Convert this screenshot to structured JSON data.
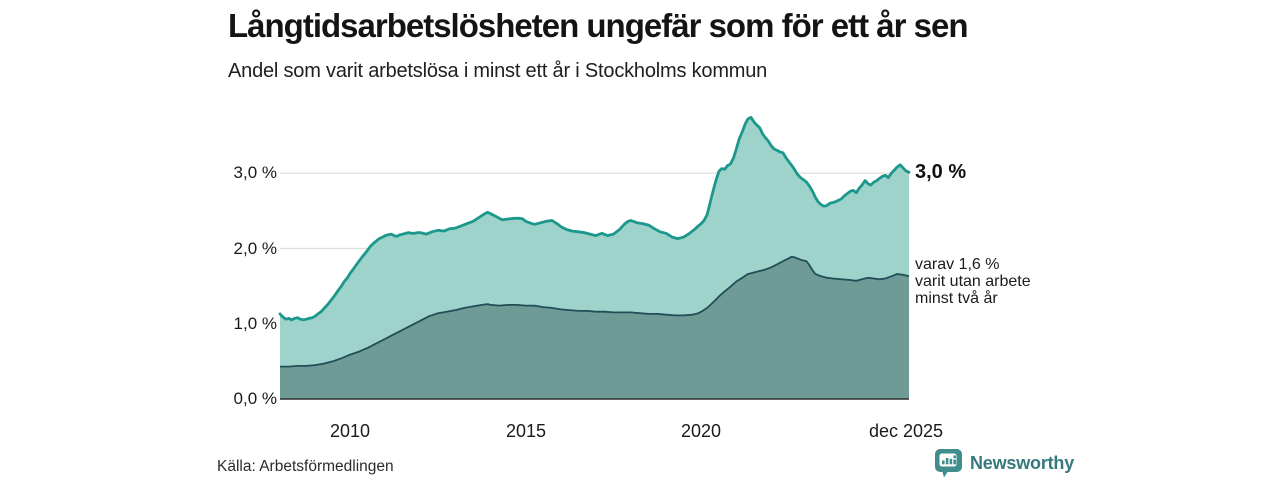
{
  "logo": {
    "text": "Newsworthy",
    "icon": "bar-chart-speech-bubble",
    "badge_color": "#3f8e8d",
    "text_color": "#36797d"
  },
  "chart_data": {
    "type": "area",
    "title": "Långtidsarbetslösheten ungefär som för ett år sen",
    "subtitle": "Andel som varit arbetslösa i minst ett år i Stockholms kommun",
    "source": "Källa: Arbetsförmedlingen",
    "xlabel": "",
    "ylabel": "",
    "xlim": [
      2008,
      2025.92
    ],
    "ylim": [
      0,
      4.0
    ],
    "grid": true,
    "legend": "direct-labels-right",
    "ytick_labels": [
      "3,0 %",
      "2,0 %",
      "1,0 %",
      "0,0 %"
    ],
    "ytick_values": [
      3,
      2,
      1,
      0
    ],
    "xtick_labels": [
      "2010",
      "2015",
      "2020",
      "dec 2025"
    ],
    "xtick_values": [
      2010,
      2015,
      2020,
      2025.92
    ],
    "annotations": {
      "end_total_label": "3,0 %",
      "sub_label_lines": [
        "varav 1,6 %",
        "varit utan arbete",
        "minst två år"
      ]
    },
    "colors": {
      "line_total": "#1b988b",
      "fill_total": "#9ed3cc",
      "line_two_year": "#214e57",
      "fill_two_year": "#6f9b96",
      "grid": "#d8d8d8",
      "axis": "#2e2e2e"
    },
    "series": [
      {
        "name": "arbetslösa minst ett år",
        "end_value_pct": 3.0,
        "points": [
          [
            2008.0,
            1.13
          ],
          [
            2008.08,
            1.09
          ],
          [
            2008.17,
            1.06
          ],
          [
            2008.25,
            1.07
          ],
          [
            2008.33,
            1.05
          ],
          [
            2008.42,
            1.07
          ],
          [
            2008.5,
            1.08
          ],
          [
            2008.58,
            1.06
          ],
          [
            2008.67,
            1.05
          ],
          [
            2008.75,
            1.06
          ],
          [
            2008.83,
            1.07
          ],
          [
            2008.92,
            1.08
          ],
          [
            2009.0,
            1.1
          ],
          [
            2009.08,
            1.13
          ],
          [
            2009.17,
            1.16
          ],
          [
            2009.25,
            1.2
          ],
          [
            2009.33,
            1.24
          ],
          [
            2009.42,
            1.29
          ],
          [
            2009.5,
            1.34
          ],
          [
            2009.58,
            1.39
          ],
          [
            2009.67,
            1.45
          ],
          [
            2009.75,
            1.5
          ],
          [
            2009.83,
            1.56
          ],
          [
            2009.92,
            1.61
          ],
          [
            2010.0,
            1.67
          ],
          [
            2010.08,
            1.72
          ],
          [
            2010.17,
            1.78
          ],
          [
            2010.25,
            1.83
          ],
          [
            2010.33,
            1.88
          ],
          [
            2010.42,
            1.93
          ],
          [
            2010.5,
            1.98
          ],
          [
            2010.58,
            2.03
          ],
          [
            2010.67,
            2.07
          ],
          [
            2010.75,
            2.1
          ],
          [
            2010.83,
            2.13
          ],
          [
            2010.92,
            2.15
          ],
          [
            2011.0,
            2.17
          ],
          [
            2011.08,
            2.18
          ],
          [
            2011.17,
            2.19
          ],
          [
            2011.25,
            2.17
          ],
          [
            2011.33,
            2.16
          ],
          [
            2011.42,
            2.18
          ],
          [
            2011.5,
            2.19
          ],
          [
            2011.58,
            2.2
          ],
          [
            2011.67,
            2.21
          ],
          [
            2011.75,
            2.2
          ],
          [
            2011.83,
            2.2
          ],
          [
            2011.92,
            2.21
          ],
          [
            2012.0,
            2.21
          ],
          [
            2012.17,
            2.19
          ],
          [
            2012.33,
            2.22
          ],
          [
            2012.5,
            2.24
          ],
          [
            2012.67,
            2.23
          ],
          [
            2012.83,
            2.26
          ],
          [
            2013.0,
            2.27
          ],
          [
            2013.17,
            2.3
          ],
          [
            2013.33,
            2.33
          ],
          [
            2013.5,
            2.36
          ],
          [
            2013.67,
            2.41
          ],
          [
            2013.83,
            2.46
          ],
          [
            2013.92,
            2.48
          ],
          [
            2014.0,
            2.46
          ],
          [
            2014.17,
            2.42
          ],
          [
            2014.33,
            2.38
          ],
          [
            2014.5,
            2.39
          ],
          [
            2014.67,
            2.4
          ],
          [
            2014.83,
            2.4
          ],
          [
            2014.92,
            2.39
          ],
          [
            2015.0,
            2.36
          ],
          [
            2015.17,
            2.33
          ],
          [
            2015.25,
            2.32
          ],
          [
            2015.42,
            2.34
          ],
          [
            2015.58,
            2.36
          ],
          [
            2015.75,
            2.37
          ],
          [
            2015.92,
            2.32
          ],
          [
            2016.0,
            2.29
          ],
          [
            2016.17,
            2.25
          ],
          [
            2016.33,
            2.23
          ],
          [
            2016.5,
            2.22
          ],
          [
            2016.67,
            2.21
          ],
          [
            2016.83,
            2.19
          ],
          [
            2017.0,
            2.17
          ],
          [
            2017.17,
            2.2
          ],
          [
            2017.33,
            2.17
          ],
          [
            2017.5,
            2.19
          ],
          [
            2017.67,
            2.25
          ],
          [
            2017.83,
            2.33
          ],
          [
            2017.92,
            2.36
          ],
          [
            2018.0,
            2.37
          ],
          [
            2018.17,
            2.34
          ],
          [
            2018.33,
            2.33
          ],
          [
            2018.5,
            2.31
          ],
          [
            2018.67,
            2.26
          ],
          [
            2018.83,
            2.22
          ],
          [
            2019.0,
            2.2
          ],
          [
            2019.17,
            2.15
          ],
          [
            2019.33,
            2.13
          ],
          [
            2019.5,
            2.15
          ],
          [
            2019.67,
            2.2
          ],
          [
            2019.83,
            2.26
          ],
          [
            2019.92,
            2.3
          ],
          [
            2020.0,
            2.33
          ],
          [
            2020.08,
            2.37
          ],
          [
            2020.17,
            2.45
          ],
          [
            2020.25,
            2.6
          ],
          [
            2020.33,
            2.75
          ],
          [
            2020.42,
            2.9
          ],
          [
            2020.5,
            3.02
          ],
          [
            2020.58,
            3.06
          ],
          [
            2020.67,
            3.05
          ],
          [
            2020.75,
            3.1
          ],
          [
            2020.83,
            3.12
          ],
          [
            2020.92,
            3.2
          ],
          [
            2021.0,
            3.32
          ],
          [
            2021.08,
            3.45
          ],
          [
            2021.17,
            3.55
          ],
          [
            2021.25,
            3.65
          ],
          [
            2021.33,
            3.72
          ],
          [
            2021.42,
            3.74
          ],
          [
            2021.5,
            3.68
          ],
          [
            2021.58,
            3.64
          ],
          [
            2021.67,
            3.6
          ],
          [
            2021.75,
            3.52
          ],
          [
            2021.83,
            3.47
          ],
          [
            2021.92,
            3.42
          ],
          [
            2022.0,
            3.36
          ],
          [
            2022.08,
            3.32
          ],
          [
            2022.17,
            3.3
          ],
          [
            2022.25,
            3.28
          ],
          [
            2022.33,
            3.27
          ],
          [
            2022.42,
            3.2
          ],
          [
            2022.5,
            3.15
          ],
          [
            2022.58,
            3.1
          ],
          [
            2022.67,
            3.04
          ],
          [
            2022.75,
            2.98
          ],
          [
            2022.83,
            2.94
          ],
          [
            2022.92,
            2.91
          ],
          [
            2023.0,
            2.88
          ],
          [
            2023.08,
            2.83
          ],
          [
            2023.17,
            2.76
          ],
          [
            2023.25,
            2.68
          ],
          [
            2023.33,
            2.62
          ],
          [
            2023.42,
            2.58
          ],
          [
            2023.5,
            2.56
          ],
          [
            2023.58,
            2.57
          ],
          [
            2023.67,
            2.6
          ],
          [
            2023.75,
            2.61
          ],
          [
            2023.83,
            2.62
          ],
          [
            2023.92,
            2.64
          ],
          [
            2024.0,
            2.66
          ],
          [
            2024.08,
            2.7
          ],
          [
            2024.17,
            2.73
          ],
          [
            2024.25,
            2.76
          ],
          [
            2024.33,
            2.77
          ],
          [
            2024.42,
            2.74
          ],
          [
            2024.5,
            2.8
          ],
          [
            2024.58,
            2.84
          ],
          [
            2024.67,
            2.9
          ],
          [
            2024.75,
            2.86
          ],
          [
            2024.83,
            2.84
          ],
          [
            2024.92,
            2.88
          ],
          [
            2025.0,
            2.9
          ],
          [
            2025.08,
            2.93
          ],
          [
            2025.17,
            2.96
          ],
          [
            2025.25,
            2.97
          ],
          [
            2025.33,
            2.94
          ],
          [
            2025.42,
            3.0
          ],
          [
            2025.5,
            3.04
          ],
          [
            2025.58,
            3.08
          ],
          [
            2025.67,
            3.11
          ],
          [
            2025.75,
            3.07
          ],
          [
            2025.83,
            3.03
          ],
          [
            2025.92,
            3.01
          ]
        ]
      },
      {
        "name": "varav utan arbete minst två år",
        "end_value_pct": 1.6,
        "points": [
          [
            2008.0,
            0.43
          ],
          [
            2008.25,
            0.43
          ],
          [
            2008.5,
            0.44
          ],
          [
            2008.75,
            0.44
          ],
          [
            2009.0,
            0.45
          ],
          [
            2009.25,
            0.47
          ],
          [
            2009.5,
            0.5
          ],
          [
            2009.75,
            0.54
          ],
          [
            2010.0,
            0.59
          ],
          [
            2010.25,
            0.63
          ],
          [
            2010.5,
            0.68
          ],
          [
            2010.75,
            0.74
          ],
          [
            2011.0,
            0.8
          ],
          [
            2011.25,
            0.86
          ],
          [
            2011.5,
            0.92
          ],
          [
            2011.75,
            0.98
          ],
          [
            2012.0,
            1.04
          ],
          [
            2012.25,
            1.1
          ],
          [
            2012.5,
            1.14
          ],
          [
            2012.75,
            1.16
          ],
          [
            2013.0,
            1.18
          ],
          [
            2013.25,
            1.21
          ],
          [
            2013.5,
            1.23
          ],
          [
            2013.75,
            1.25
          ],
          [
            2013.92,
            1.26
          ],
          [
            2014.0,
            1.25
          ],
          [
            2014.25,
            1.24
          ],
          [
            2014.5,
            1.25
          ],
          [
            2014.75,
            1.25
          ],
          [
            2015.0,
            1.24
          ],
          [
            2015.25,
            1.24
          ],
          [
            2015.5,
            1.22
          ],
          [
            2015.75,
            1.21
          ],
          [
            2016.0,
            1.19
          ],
          [
            2016.25,
            1.18
          ],
          [
            2016.5,
            1.17
          ],
          [
            2016.75,
            1.17
          ],
          [
            2017.0,
            1.16
          ],
          [
            2017.25,
            1.16
          ],
          [
            2017.5,
            1.15
          ],
          [
            2017.75,
            1.15
          ],
          [
            2018.0,
            1.15
          ],
          [
            2018.25,
            1.14
          ],
          [
            2018.5,
            1.13
          ],
          [
            2018.75,
            1.13
          ],
          [
            2019.0,
            1.12
          ],
          [
            2019.25,
            1.11
          ],
          [
            2019.5,
            1.11
          ],
          [
            2019.75,
            1.12
          ],
          [
            2019.92,
            1.14
          ],
          [
            2020.0,
            1.16
          ],
          [
            2020.17,
            1.21
          ],
          [
            2020.33,
            1.28
          ],
          [
            2020.5,
            1.36
          ],
          [
            2020.67,
            1.43
          ],
          [
            2020.83,
            1.49
          ],
          [
            2021.0,
            1.56
          ],
          [
            2021.17,
            1.61
          ],
          [
            2021.33,
            1.66
          ],
          [
            2021.5,
            1.68
          ],
          [
            2021.67,
            1.7
          ],
          [
            2021.83,
            1.72
          ],
          [
            2022.0,
            1.75
          ],
          [
            2022.17,
            1.79
          ],
          [
            2022.33,
            1.83
          ],
          [
            2022.5,
            1.87
          ],
          [
            2022.58,
            1.89
          ],
          [
            2022.67,
            1.88
          ],
          [
            2022.83,
            1.85
          ],
          [
            2023.0,
            1.83
          ],
          [
            2023.08,
            1.78
          ],
          [
            2023.17,
            1.71
          ],
          [
            2023.25,
            1.66
          ],
          [
            2023.42,
            1.63
          ],
          [
            2023.58,
            1.61
          ],
          [
            2023.75,
            1.6
          ],
          [
            2024.0,
            1.59
          ],
          [
            2024.25,
            1.58
          ],
          [
            2024.42,
            1.57
          ],
          [
            2024.58,
            1.59
          ],
          [
            2024.75,
            1.61
          ],
          [
            2024.92,
            1.6
          ],
          [
            2025.08,
            1.59
          ],
          [
            2025.25,
            1.6
          ],
          [
            2025.42,
            1.63
          ],
          [
            2025.58,
            1.66
          ],
          [
            2025.75,
            1.65
          ],
          [
            2025.92,
            1.63
          ]
        ]
      }
    ]
  }
}
